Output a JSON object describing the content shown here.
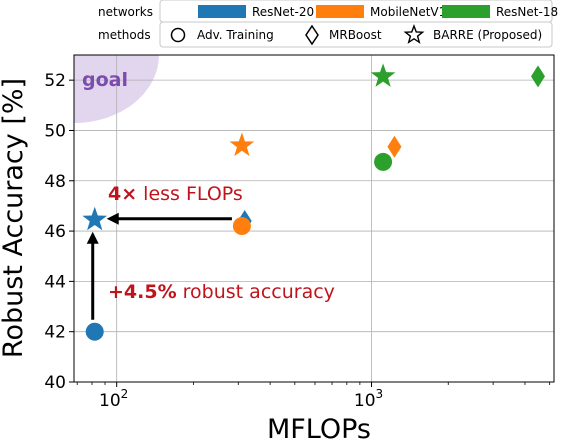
{
  "chart_data": {
    "type": "scatter",
    "title": "",
    "xlabel": "MFLOPs",
    "ylabel": "Robust Accuracy [%]",
    "xscale": "log",
    "xlim": [
      68,
      5200
    ],
    "ylim": [
      40,
      53
    ],
    "x_ticks": [
      {
        "value": 100,
        "base": "10",
        "exp": "2"
      },
      {
        "value": 1000,
        "base": "10",
        "exp": "3"
      }
    ],
    "y_ticks": [
      40,
      42,
      44,
      46,
      48,
      50,
      52
    ],
    "grid": true,
    "legend": {
      "placement": "top",
      "networks_label": "networks",
      "methods_label": "methods",
      "networks": [
        {
          "name": "ResNet-20",
          "color": "#1f77b4"
        },
        {
          "name": "MobileNetV1",
          "color": "#ff7f0e"
        },
        {
          "name": "ResNet-18",
          "color": "#2ca02c"
        }
      ],
      "methods": [
        {
          "name": "Adv. Training",
          "marker": "circle"
        },
        {
          "name": "MRBoost",
          "marker": "diamond"
        },
        {
          "name": "BARRE (Proposed)",
          "marker": "star"
        }
      ]
    },
    "points": [
      {
        "network": "ResNet-20",
        "method": "Adv. Training",
        "x": 82,
        "y": 42.0
      },
      {
        "network": "ResNet-20",
        "method": "MRBoost",
        "x": 318,
        "y": 46.4
      },
      {
        "network": "ResNet-20",
        "method": "BARRE (Proposed)",
        "x": 82,
        "y": 46.45
      },
      {
        "network": "MobileNetV1",
        "method": "Adv. Training",
        "x": 310,
        "y": 46.2
      },
      {
        "network": "MobileNetV1",
        "method": "MRBoost",
        "x": 1230,
        "y": 49.35
      },
      {
        "network": "MobileNetV1",
        "method": "BARRE (Proposed)",
        "x": 310,
        "y": 49.4
      },
      {
        "network": "ResNet-18",
        "method": "Adv. Training",
        "x": 1110,
        "y": 48.75
      },
      {
        "network": "ResNet-18",
        "method": "MRBoost",
        "x": 4500,
        "y": 52.15
      },
      {
        "network": "ResNet-18",
        "method": "BARRE (Proposed)",
        "x": 1110,
        "y": 52.15
      }
    ],
    "annotations": {
      "goal": {
        "text": "goal",
        "color": "#7b4cad",
        "fill": "#e2d6ee"
      },
      "flops": {
        "bold": "4×",
        "rest": " less FLOPs",
        "color": "#c0141c"
      },
      "accuracy": {
        "bold": "+4.5%",
        "rest": " robust accuracy",
        "color": "#c0141c"
      }
    }
  }
}
